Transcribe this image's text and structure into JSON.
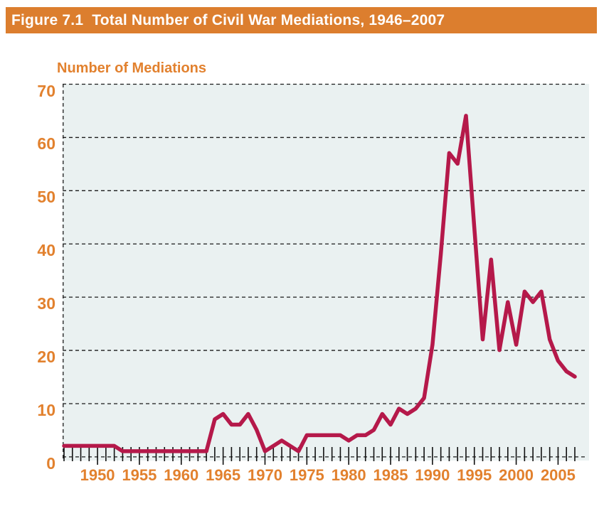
{
  "figure": {
    "title": "Figure 7.1  Total Number of Civil War Mediations, 1946–2007",
    "y_axis_title": "Number of Mediations"
  },
  "colors": {
    "header_bar": "#DC7E2E",
    "header_text": "#FFFFFF",
    "axis_label_orange": "#E2812E",
    "line_crimson": "#B5194A",
    "plot_background": "#EAF1F1",
    "gridline": "#1A1A1A"
  },
  "chart_data": {
    "type": "line",
    "title": "Figure 7.1  Total Number of Civil War Mediations, 1946–2007",
    "xlabel": "",
    "ylabel": "Number of Mediations",
    "ylim": [
      0,
      70
    ],
    "yticks": [
      0,
      10,
      20,
      30,
      40,
      50,
      60,
      70
    ],
    "xticks": [
      1950,
      1955,
      1960,
      1965,
      1970,
      1975,
      1980,
      1985,
      1990,
      1995,
      2000,
      2005
    ],
    "grid": "horizontal-dashed",
    "legend": "none",
    "line_color": "#B5194A",
    "x": [
      1946,
      1947,
      1948,
      1949,
      1950,
      1951,
      1952,
      1953,
      1954,
      1955,
      1956,
      1957,
      1958,
      1959,
      1960,
      1961,
      1962,
      1963,
      1964,
      1965,
      1966,
      1967,
      1968,
      1969,
      1970,
      1971,
      1972,
      1973,
      1974,
      1975,
      1976,
      1977,
      1978,
      1979,
      1980,
      1981,
      1982,
      1983,
      1984,
      1985,
      1986,
      1987,
      1988,
      1989,
      1990,
      1991,
      1992,
      1993,
      1994,
      1995,
      1996,
      1997,
      1998,
      1999,
      2000,
      2001,
      2002,
      2003,
      2004,
      2005,
      2006,
      2007
    ],
    "values": [
      2,
      2,
      2,
      2,
      2,
      2,
      2,
      1,
      1,
      1,
      1,
      1,
      1,
      1,
      1,
      1,
      1,
      1,
      7,
      8,
      6,
      6,
      8,
      5,
      1,
      2,
      3,
      2,
      1,
      4,
      4,
      4,
      4,
      4,
      3,
      4,
      4,
      5,
      8,
      6,
      9,
      8,
      9,
      11,
      21,
      38,
      57,
      55,
      64,
      43,
      22,
      37,
      20,
      29,
      21,
      31,
      29,
      31,
      22,
      18,
      16,
      15
    ]
  }
}
